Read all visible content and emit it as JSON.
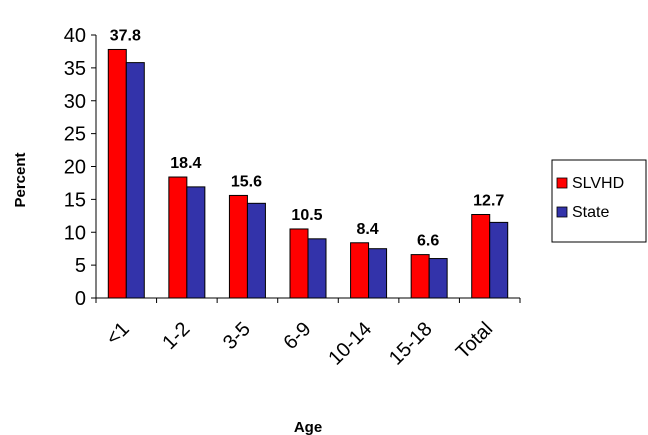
{
  "chart_data": {
    "type": "bar",
    "categories": [
      "<1",
      "1-2",
      "3-5",
      "6-9",
      "10-14",
      "15-18",
      "Total"
    ],
    "series": [
      {
        "name": "SLVHD",
        "color": "#ff0000",
        "values": [
          37.8,
          18.4,
          15.6,
          10.5,
          8.4,
          6.6,
          12.7
        ],
        "data_labels": [
          "37.8",
          "18.4",
          "15.6",
          "10.5",
          "8.4",
          "6.6",
          "12.7"
        ]
      },
      {
        "name": "State",
        "color": "#3333aa",
        "values": [
          35.8,
          16.9,
          14.4,
          9.0,
          7.5,
          6.0,
          11.5
        ]
      }
    ],
    "xlabel": "Age",
    "ylabel": "Percent",
    "ylim": [
      0,
      40
    ],
    "yticks": [
      0,
      5,
      10,
      15,
      20,
      25,
      30,
      35,
      40
    ],
    "grid": false,
    "legend_position": "right"
  }
}
